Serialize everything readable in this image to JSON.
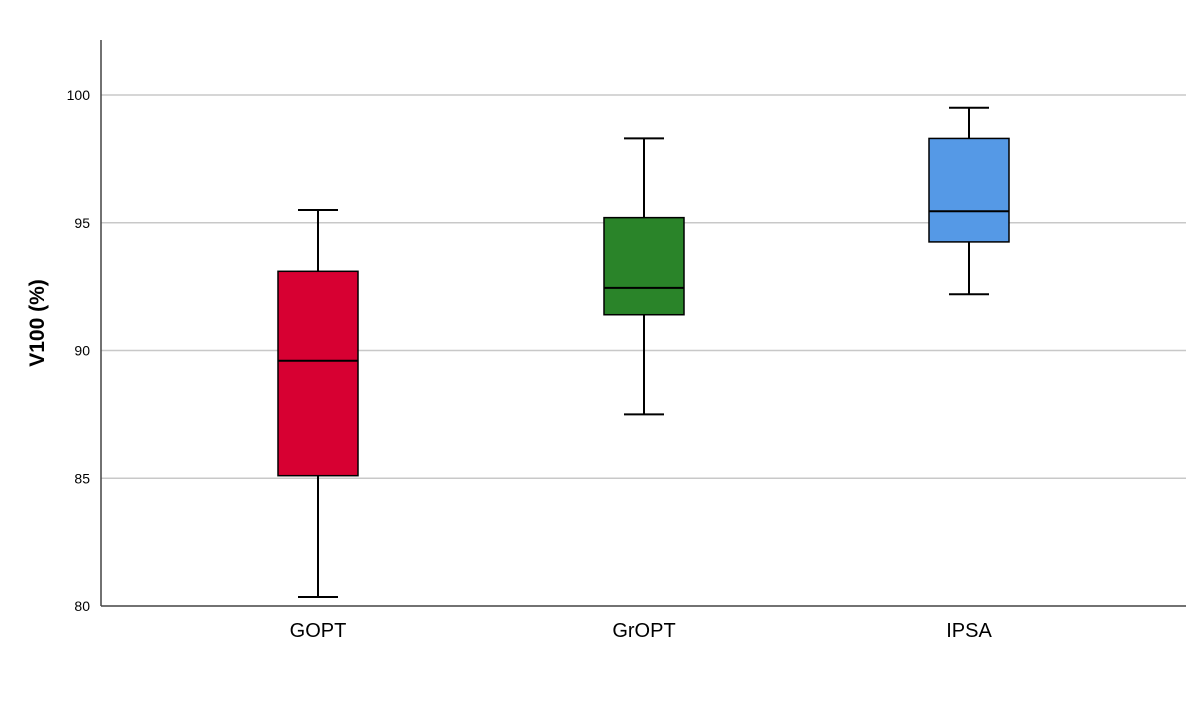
{
  "chart_data": {
    "type": "box",
    "title": "",
    "xlabel": "",
    "ylabel": "V100 (%)",
    "ylim": [
      80,
      102.2
    ],
    "yticks": [
      80,
      85,
      90,
      95,
      100
    ],
    "grid": true,
    "categories": [
      "GOPT",
      "GrOPT",
      "IPSA"
    ],
    "boxes": [
      {
        "category": "GOPT",
        "min": 80.35,
        "q1": 85.1,
        "median": 89.6,
        "q3": 93.1,
        "max": 95.5,
        "color": "#d70032"
      },
      {
        "category": "GrOPT",
        "min": 87.5,
        "q1": 91.4,
        "median": 92.45,
        "q3": 95.2,
        "max": 98.3,
        "color": "#2a8429"
      },
      {
        "category": "IPSA",
        "min": 92.2,
        "q1": 94.25,
        "median": 95.45,
        "q3": 98.3,
        "max": 99.5,
        "color": "#5599e6"
      }
    ]
  }
}
